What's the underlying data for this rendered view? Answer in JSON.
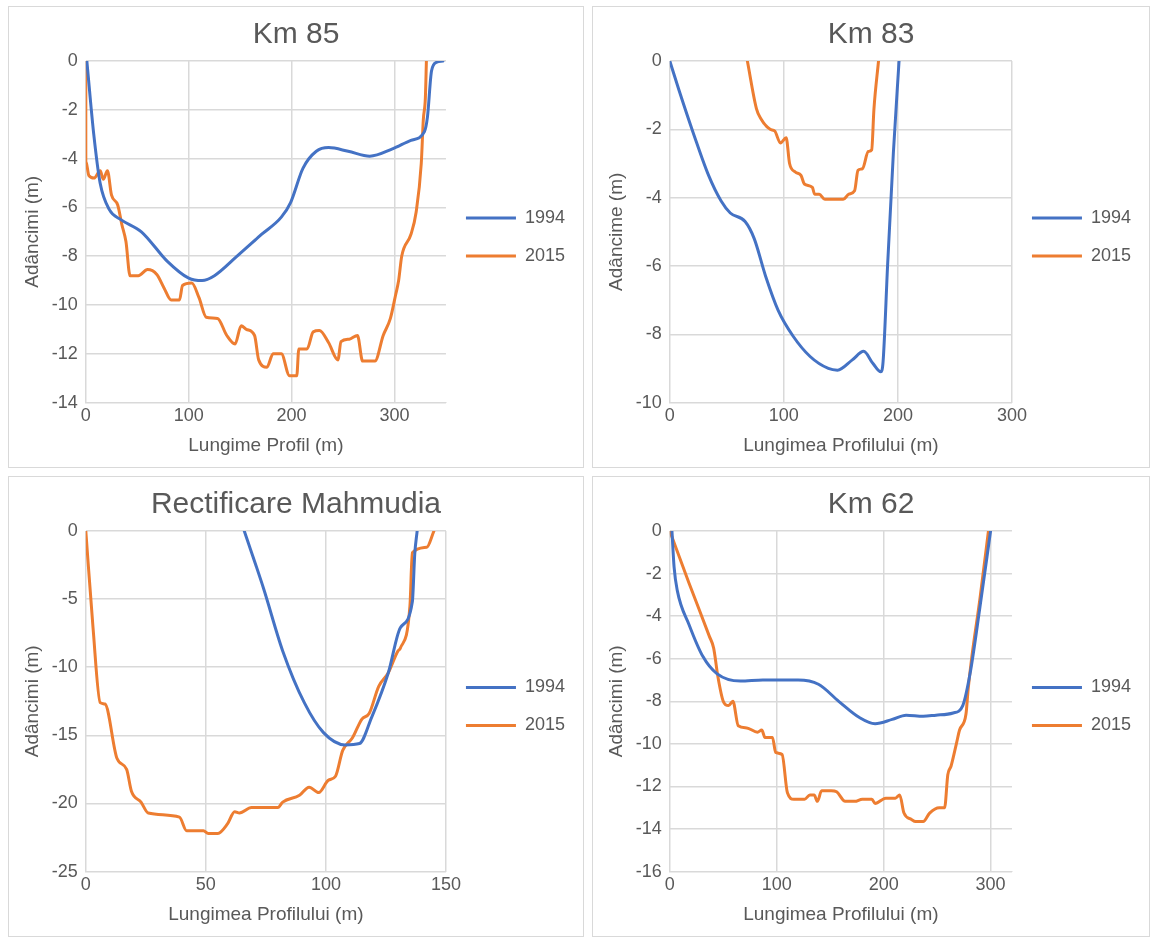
{
  "chart_data": [
    {
      "type": "line",
      "title": "Km 85",
      "xlabel": "Lungime Profil (m)",
      "ylabel": "Adâncimi (m)",
      "xlim": [
        0,
        350
      ],
      "xticks": [
        0,
        100,
        200,
        300
      ],
      "ylim": [
        -14,
        0
      ],
      "yticks": [
        -14,
        -12,
        -10,
        -8,
        -6,
        -4,
        -2,
        0
      ],
      "grid": true,
      "legend": "right",
      "marker": "none",
      "series": [
        {
          "name": "1994",
          "color": "#4472c4",
          "x": [
            1,
            7.7,
            13.9,
            23,
            34,
            54,
            79,
            100,
            113,
            125,
            147,
            171,
            190,
            199,
            211,
            224,
            236,
            255,
            276,
            298,
            316,
            329,
            332,
            336,
            341,
            347
          ],
          "values": [
            0,
            -3.0,
            -5.0,
            -6.1,
            -6.5,
            -7.0,
            -8.2,
            -8.9,
            -9.0,
            -8.8,
            -8.0,
            -7.1,
            -6.4,
            -5.8,
            -4.4,
            -3.7,
            -3.55,
            -3.7,
            -3.9,
            -3.6,
            -3.25,
            -2.9,
            -2.3,
            -0.4,
            -0.05,
            0
          ]
        },
        {
          "name": "2015",
          "color": "#ed7d31",
          "x": [
            0,
            0,
            3,
            8,
            14,
            17,
            21,
            25,
            31,
            35,
            39,
            43,
            51,
            60,
            69,
            76,
            83,
            91,
            94,
            103,
            110,
            117,
            128,
            137,
            145,
            151,
            156,
            164,
            168,
            176,
            182,
            190,
            198,
            205,
            207,
            215,
            221,
            227,
            236,
            245,
            248,
            256,
            264,
            269,
            281,
            289,
            296,
            301,
            304,
            307,
            316,
            321,
            326,
            328,
            330,
            331
          ],
          "values": [
            0,
            -4.1,
            -4.7,
            -4.8,
            -4.5,
            -4.85,
            -4.5,
            -5.5,
            -5.9,
            -6.7,
            -7.4,
            -8.8,
            -8.8,
            -8.55,
            -8.75,
            -9.3,
            -9.8,
            -9.8,
            -9.2,
            -9.1,
            -9.7,
            -10.5,
            -10.55,
            -11.25,
            -11.6,
            -10.85,
            -11.0,
            -11.25,
            -12.25,
            -12.55,
            -12.0,
            -12.0,
            -12.9,
            -12.9,
            -11.8,
            -11.8,
            -11.1,
            -11.05,
            -11.55,
            -12.25,
            -11.5,
            -11.4,
            -11.25,
            -12.3,
            -12.3,
            -11.25,
            -10.55,
            -9.6,
            -9.0,
            -8.0,
            -7.1,
            -6.2,
            -4.2,
            -2.4,
            -1.5,
            0
          ]
        }
      ]
    },
    {
      "type": "line",
      "title": "Km 83",
      "xlabel": "Lungimea Profilului (m)",
      "ylabel": "Adâncime (m)",
      "xlim": [
        0,
        300
      ],
      "xticks": [
        0,
        100,
        200,
        300
      ],
      "ylim": [
        -10,
        0
      ],
      "yticks": [
        -10,
        -8,
        -6,
        -4,
        -2,
        0
      ],
      "grid": true,
      "legend": "right",
      "marker": "none",
      "series": [
        {
          "name": "1994",
          "color": "#4472c4",
          "x": [
            0,
            8,
            21,
            34,
            45,
            53,
            66,
            74,
            84,
            95,
            108,
            123,
            139,
            147,
            160,
            170,
            178,
            185,
            187,
            191,
            196,
            201
          ],
          "values": [
            0,
            -0.85,
            -2.15,
            -3.35,
            -4.1,
            -4.45,
            -4.7,
            -5.2,
            -6.3,
            -7.3,
            -8.05,
            -8.65,
            -9.0,
            -9.05,
            -8.75,
            -8.5,
            -8.85,
            -9.1,
            -8.8,
            -5.95,
            -2.7,
            0
          ]
        },
        {
          "name": "2015",
          "color": "#ed7d31",
          "x": [
            68,
            76,
            80,
            88,
            92,
            97,
            102,
            105,
            110,
            115,
            118,
            125,
            127,
            131,
            136,
            152,
            157,
            162,
            165,
            169,
            174,
            177,
            179,
            183
          ],
          "values": [
            0,
            -1.4,
            -1.7,
            -2.0,
            -2.05,
            -2.4,
            -2.25,
            -3.0,
            -3.25,
            -3.35,
            -3.6,
            -3.7,
            -3.9,
            -3.9,
            -4.05,
            -4.05,
            -3.9,
            -3.8,
            -3.2,
            -3.15,
            -2.65,
            -2.6,
            -1.4,
            0
          ]
        }
      ]
    },
    {
      "type": "line",
      "title": "Rectificare Mahmudia",
      "xlabel": "Lungimea Profilului (m)",
      "ylabel": "Adâncimi (m)",
      "xlim": [
        0,
        150
      ],
      "xticks": [
        0,
        50,
        100,
        150
      ],
      "ylim": [
        -25,
        0
      ],
      "yticks": [
        -25,
        -20,
        -15,
        -10,
        -5,
        0
      ],
      "grid": true,
      "legend": "right",
      "marker": "none",
      "series": [
        {
          "name": "1994",
          "color": "#4472c4",
          "x": [
            66,
            74,
            82,
            91,
            99,
            108,
            114,
            119,
            126,
            131,
            136,
            137,
            138
          ],
          "values": [
            0,
            -4.2,
            -8.8,
            -12.6,
            -14.8,
            -15.7,
            -15.6,
            -13.7,
            -10.4,
            -7.1,
            -5.2,
            -1.7,
            0
          ]
        },
        {
          "name": "2015",
          "color": "#ed7d31",
          "x": [
            0,
            3,
            6,
            8,
            13,
            17,
            19,
            23,
            26,
            39,
            42,
            49,
            51,
            55,
            59,
            62,
            64,
            69,
            80,
            82,
            89,
            93,
            97,
            101,
            104,
            107,
            111,
            115,
            118,
            122,
            126,
            130,
            131,
            135,
            136,
            142,
            145
          ],
          "values": [
            0,
            -7.1,
            -12.6,
            -12.7,
            -16.7,
            -17.5,
            -19.1,
            -19.9,
            -20.7,
            -21.0,
            -22.0,
            -22.0,
            -22.2,
            -22.2,
            -21.5,
            -20.6,
            -20.7,
            -20.3,
            -20.3,
            -19.9,
            -19.4,
            -18.8,
            -19.2,
            -18.3,
            -18.0,
            -16.1,
            -15.2,
            -13.8,
            -13.4,
            -11.4,
            -10.4,
            -8.8,
            -8.6,
            -5.5,
            -1.6,
            -1.2,
            0
          ]
        }
      ]
    },
    {
      "type": "line",
      "title": "Km 62",
      "xlabel": "Lungimea Profilului (m)",
      "ylabel": "Adâncimi (m)",
      "xlim": [
        0,
        320
      ],
      "xticks": [
        0,
        100,
        200,
        300
      ],
      "ylim": [
        -16,
        0
      ],
      "yticks": [
        -16,
        -14,
        -12,
        -10,
        -8,
        -6,
        -4,
        -2,
        0
      ],
      "grid": true,
      "legend": "right",
      "marker": "none",
      "series": [
        {
          "name": "1994",
          "color": "#4472c4",
          "x": [
            2,
            4,
            7,
            18,
            31,
            44,
            66,
            87,
            120,
            139,
            158,
            177,
            192,
            208,
            221,
            237,
            249,
            265,
            274,
            281,
            290,
            300
          ],
          "values": [
            0,
            -1.7,
            -2.8,
            -4.4,
            -5.9,
            -6.7,
            -7.05,
            -7.0,
            -7.0,
            -7.2,
            -8.0,
            -8.75,
            -9.05,
            -8.85,
            -8.65,
            -8.7,
            -8.65,
            -8.55,
            -8.2,
            -6.65,
            -3.6,
            0
          ]
        },
        {
          "name": "2015",
          "color": "#ed7d31",
          "x": [
            0,
            18,
            37,
            41,
            45,
            50,
            55,
            59,
            64,
            72,
            82,
            86,
            89,
            96,
            99,
            105,
            110,
            116,
            126,
            131,
            135,
            138,
            142,
            151,
            156,
            164,
            173,
            180,
            189,
            192,
            202,
            211,
            215,
            219,
            226,
            230,
            237,
            243,
            252,
            257,
            260,
            263,
            268,
            271,
            277,
            279,
            282,
            290,
            298
          ],
          "values": [
            0,
            -2.45,
            -4.95,
            -5.5,
            -6.85,
            -8.0,
            -8.2,
            -8.0,
            -9.15,
            -9.25,
            -9.45,
            -9.35,
            -9.7,
            -9.7,
            -10.4,
            -10.5,
            -12.3,
            -12.6,
            -12.6,
            -12.4,
            -12.4,
            -12.7,
            -12.2,
            -12.2,
            -12.25,
            -12.7,
            -12.7,
            -12.6,
            -12.6,
            -12.8,
            -12.55,
            -12.55,
            -12.4,
            -13.25,
            -13.55,
            -13.65,
            -13.65,
            -13.25,
            -13.0,
            -13.0,
            -11.45,
            -11.05,
            -10.0,
            -9.35,
            -8.6,
            -7.45,
            -6.1,
            -3.2,
            0
          ]
        }
      ]
    }
  ]
}
